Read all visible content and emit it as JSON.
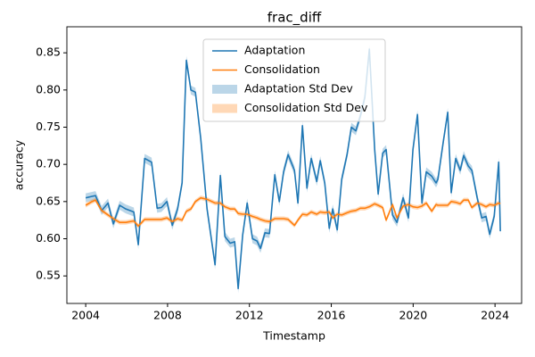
{
  "chart_data": {
    "type": "line",
    "title": "frac_diff",
    "x_label": "Timestamp",
    "y_label": "accuracy",
    "x": [
      2004.0,
      2004.31,
      2004.48,
      2004.78,
      2005.09,
      2005.35,
      2005.66,
      2005.96,
      2006.35,
      2006.57,
      2006.88,
      2007.22,
      2007.49,
      2007.7,
      2007.97,
      2008.23,
      2008.49,
      2008.71,
      2008.92,
      2009.14,
      2009.36,
      2009.62,
      2009.93,
      2010.32,
      2010.58,
      2010.8,
      2011.06,
      2011.28,
      2011.45,
      2011.67,
      2011.89,
      2012.15,
      2012.37,
      2012.54,
      2012.76,
      2012.98,
      2013.24,
      2013.46,
      2013.67,
      2013.89,
      2014.2,
      2014.37,
      2014.59,
      2014.81,
      2015.02,
      2015.29,
      2015.46,
      2015.68,
      2015.9,
      2016.07,
      2016.29,
      2016.51,
      2016.77,
      2016.98,
      2017.2,
      2017.42,
      2017.64,
      2017.86,
      2018.12,
      2018.29,
      2018.51,
      2018.68,
      2018.99,
      2019.21,
      2019.51,
      2019.77,
      2019.99,
      2020.21,
      2020.43,
      2020.64,
      2020.91,
      2021.12,
      2021.21,
      2021.47,
      2021.69,
      2021.86,
      2022.08,
      2022.3,
      2022.47,
      2022.69,
      2022.87,
      2023.13,
      2023.35,
      2023.56,
      2023.74,
      2023.96,
      2024.18,
      2024.26
    ],
    "series": [
      {
        "name": "Adaptation",
        "band_name": "Adaptation Std Dev",
        "color": "#1f77b4",
        "std": 0.006,
        "values": [
          0.655,
          0.657,
          0.658,
          0.638,
          0.648,
          0.62,
          0.645,
          0.64,
          0.636,
          0.592,
          0.708,
          0.703,
          0.641,
          0.642,
          0.65,
          0.618,
          0.64,
          0.675,
          0.84,
          0.8,
          0.797,
          0.735,
          0.64,
          0.565,
          0.685,
          0.603,
          0.594,
          0.596,
          0.533,
          0.605,
          0.648,
          0.6,
          0.597,
          0.587,
          0.608,
          0.607,
          0.686,
          0.65,
          0.69,
          0.713,
          0.692,
          0.648,
          0.752,
          0.668,
          0.708,
          0.677,
          0.705,
          0.675,
          0.614,
          0.64,
          0.612,
          0.68,
          0.713,
          0.75,
          0.745,
          0.765,
          0.79,
          0.855,
          0.72,
          0.66,
          0.715,
          0.72,
          0.632,
          0.622,
          0.655,
          0.628,
          0.72,
          0.767,
          0.648,
          0.69,
          0.684,
          0.675,
          0.68,
          0.73,
          0.77,
          0.662,
          0.708,
          0.692,
          0.712,
          0.698,
          0.692,
          0.655,
          0.628,
          0.63,
          0.606,
          0.63,
          0.703,
          0.61
        ]
      },
      {
        "name": "Consolidation",
        "band_name": "Consolidation Std Dev",
        "color": "#ff7f0e",
        "std": 0.003,
        "values": [
          0.645,
          0.65,
          0.652,
          0.638,
          0.632,
          0.627,
          0.622,
          0.622,
          0.624,
          0.617,
          0.626,
          0.626,
          0.626,
          0.626,
          0.628,
          0.623,
          0.627,
          0.625,
          0.637,
          0.64,
          0.65,
          0.655,
          0.653,
          0.648,
          0.648,
          0.643,
          0.64,
          0.64,
          0.634,
          0.633,
          0.633,
          0.63,
          0.628,
          0.626,
          0.624,
          0.623,
          0.627,
          0.627,
          0.627,
          0.626,
          0.618,
          0.625,
          0.633,
          0.632,
          0.636,
          0.633,
          0.636,
          0.635,
          0.636,
          0.628,
          0.633,
          0.632,
          0.635,
          0.637,
          0.638,
          0.641,
          0.641,
          0.643,
          0.647,
          0.645,
          0.642,
          0.625,
          0.646,
          0.628,
          0.644,
          0.646,
          0.643,
          0.642,
          0.644,
          0.648,
          0.637,
          0.646,
          0.645,
          0.645,
          0.645,
          0.65,
          0.649,
          0.647,
          0.652,
          0.652,
          0.642,
          0.648,
          0.646,
          0.643,
          0.646,
          0.645,
          0.648,
          0.647
        ]
      }
    ],
    "xlim": [
      2003.08,
      2025.3
    ],
    "xticks": [
      2004,
      2008,
      2012,
      2016,
      2020,
      2024
    ],
    "ylim": [
      0.513,
      0.885
    ],
    "yticks": [
      0.55,
      {
        "value": 0.6,
        "label": "0.60"
      },
      0.65,
      {
        "value": 0.7,
        "label": "0.70"
      },
      0.75,
      {
        "value": 0.8,
        "label": "0.80"
      },
      0.85
    ],
    "legend": "upper center",
    "band_opacity": 0.3
  }
}
